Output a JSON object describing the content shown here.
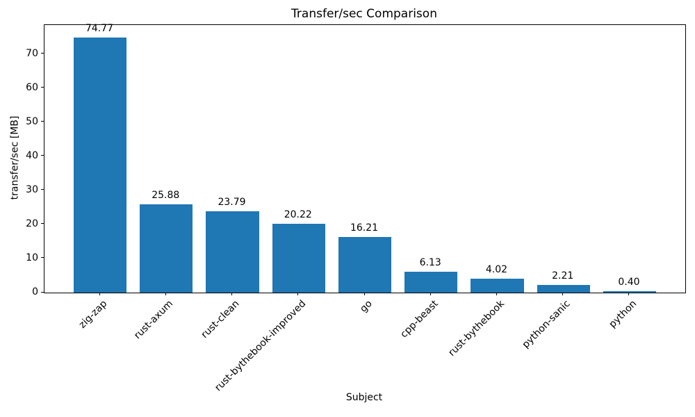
{
  "chart_data": {
    "type": "bar",
    "title": "Transfer/sec Comparison",
    "xlabel": "Subject",
    "ylabel": "transfer/sec [MB]",
    "categories": [
      "zig-zap",
      "rust-axum",
      "rust-clean",
      "rust-bythebook-improved",
      "go",
      "cpp-beast",
      "rust-bythebook",
      "python-sanic",
      "python"
    ],
    "values": [
      74.77,
      25.88,
      23.79,
      20.22,
      16.21,
      6.13,
      4.02,
      2.21,
      0.4
    ],
    "value_labels": [
      "74.77",
      "25.88",
      "23.79",
      "20.22",
      "16.21",
      "6.13",
      "4.02",
      "2.21",
      "0.40"
    ],
    "yticks": [
      0,
      10,
      20,
      30,
      40,
      50,
      60,
      70
    ],
    "ylim": [
      0,
      78.5
    ],
    "bar_color": "#1f77b4",
    "text_color": "#000000",
    "grid": false,
    "legend": null,
    "bar_label_rotation_deg": 45
  }
}
